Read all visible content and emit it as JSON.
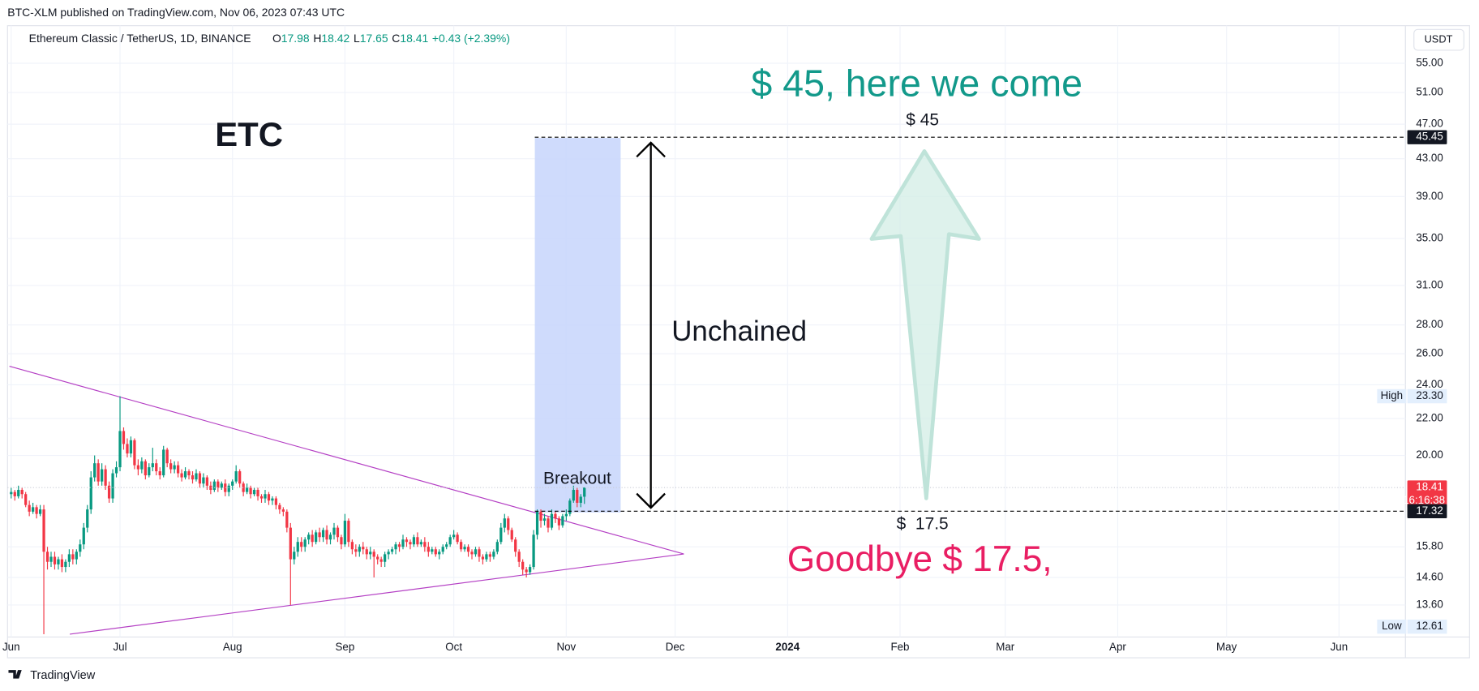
{
  "published": "BTC-XLM published on TradingView.com, Nov 06, 2023 07:43 UTC",
  "footer": "TradingView",
  "chart_data": {
    "type": "candlestick",
    "title": "Ethereum Classic / TetherUS, 1D, BINANCE",
    "quote": [
      {
        "key": "O",
        "value": "17.98"
      },
      {
        "key": "H",
        "value": "18.42"
      },
      {
        "key": "L",
        "value": "17.65"
      },
      {
        "key": "C",
        "value": "18.41"
      }
    ],
    "change": "+0.43 (+2.39%)",
    "currency": "USDT",
    "log_scale": true,
    "grid": true,
    "up_color": "#089981",
    "down_color": "#f23645",
    "open": [
      18.1,
      18.2,
      18.0,
      18.3,
      18.1,
      17.6,
      17.3,
      17.5,
      17.2,
      17.4,
      15.6,
      15.2,
      15.4,
      15.1,
      15.3,
      15.0,
      15.2,
      15.5,
      15.3,
      15.6,
      15.9,
      16.6,
      17.4,
      18.9,
      19.6,
      18.7,
      19.3,
      18.5,
      17.9,
      19.1,
      19.4,
      21.3,
      20.6,
      20.1,
      20.8,
      19.5,
      19.3,
      19.7,
      19.0,
      19.4,
      19.6,
      19.2,
      19.0,
      20.3,
      19.6,
      19.3,
      19.5,
      19.1,
      18.9,
      19.2,
      19.0,
      18.8,
      19.1,
      18.6,
      18.9,
      18.5,
      18.3,
      18.7,
      18.4,
      18.6,
      18.2,
      18.5,
      18.7,
      19.2,
      18.6,
      18.2,
      18.4,
      18.1,
      18.3,
      18.0,
      17.9,
      18.1,
      17.8,
      17.9,
      17.6,
      17.4,
      17.3,
      16.6,
      15.3,
      15.6,
      16.0,
      15.8,
      16.1,
      16.3,
      16.0,
      16.4,
      16.2,
      16.5,
      16.1,
      16.3,
      16.6,
      16.2,
      15.9,
      16.9,
      16.0,
      15.7,
      15.6,
      15.8,
      15.7,
      15.5,
      15.6,
      15.4,
      15.3,
      15.2,
      15.5,
      15.6,
      15.7,
      15.9,
      15.8,
      16.1,
      16.0,
      15.9,
      16.2,
      15.9,
      16.0,
      15.8,
      15.6,
      15.7,
      15.5,
      15.6,
      15.8,
      15.9,
      16.2,
      16.3,
      16.0,
      15.7,
      15.8,
      15.6,
      15.5,
      15.7,
      15.4,
      15.3,
      15.5,
      15.4,
      15.6,
      16.0,
      16.6,
      17.0,
      16.5,
      16.1,
      15.6,
      15.2,
      14.9,
      14.8,
      15.0,
      16.3,
      17.3,
      16.9,
      17.0,
      16.6,
      17.2,
      17.0,
      16.7,
      17.1,
      17.2,
      17.8,
      18.3,
      17.7,
      17.98
    ],
    "high": [
      18.4,
      18.3,
      18.5,
      18.4,
      18.2,
      17.8,
      17.7,
      17.6,
      17.6,
      17.6,
      15.8,
      15.6,
      15.6,
      15.4,
      15.5,
      15.3,
      15.7,
      15.7,
      15.7,
      16.1,
      16.8,
      17.6,
      19.2,
      20.0,
      19.8,
      19.6,
      19.5,
      18.7,
      19.3,
      19.7,
      23.3,
      21.5,
      20.9,
      21.0,
      20.9,
      19.8,
      19.9,
      19.8,
      19.6,
      20.4,
      19.8,
      19.4,
      20.5,
      20.4,
      19.8,
      19.7,
      19.7,
      19.3,
      19.4,
      19.3,
      19.2,
      19.3,
      19.2,
      19.1,
      19.0,
      18.7,
      18.8,
      18.8,
      18.7,
      18.8,
      18.6,
      18.8,
      19.5,
      19.3,
      18.7,
      18.6,
      18.5,
      18.4,
      18.4,
      18.1,
      18.3,
      18.2,
      18.0,
      18.0,
      17.7,
      17.5,
      17.4,
      16.8,
      15.8,
      16.2,
      16.2,
      16.2,
      16.4,
      16.5,
      16.5,
      16.6,
      16.6,
      16.7,
      16.4,
      16.8,
      16.7,
      16.3,
      17.2,
      17.0,
      16.1,
      15.9,
      15.9,
      16.0,
      15.8,
      15.8,
      15.7,
      15.5,
      15.4,
      15.6,
      15.7,
      15.8,
      16.0,
      16.0,
      16.3,
      16.2,
      16.1,
      16.3,
      16.4,
      16.1,
      16.2,
      16.0,
      15.8,
      15.8,
      15.7,
      15.9,
      16.0,
      16.3,
      16.5,
      16.4,
      16.1,
      15.9,
      15.9,
      15.7,
      15.8,
      15.8,
      15.5,
      15.6,
      15.6,
      15.7,
      16.1,
      16.8,
      17.2,
      17.1,
      16.6,
      16.2,
      15.7,
      15.3,
      15.0,
      15.1,
      16.5,
      17.4,
      17.4,
      17.2,
      17.1,
      17.4,
      17.3,
      17.1,
      17.2,
      17.4,
      17.9,
      18.5,
      18.4,
      18.1,
      18.42
    ],
    "low": [
      17.9,
      17.8,
      17.9,
      17.9,
      17.5,
      17.1,
      17.2,
      17.0,
      17.1,
      12.61,
      14.9,
      15.0,
      14.9,
      14.9,
      14.8,
      14.8,
      15.0,
      15.1,
      15.1,
      15.4,
      15.7,
      16.4,
      17.2,
      18.7,
      18.5,
      18.5,
      18.3,
      17.7,
      17.7,
      18.9,
      19.2,
      20.3,
      19.9,
      19.9,
      19.3,
      19.0,
      19.1,
      18.8,
      18.9,
      19.2,
      19.0,
      18.8,
      18.9,
      19.4,
      19.1,
      19.1,
      18.9,
      18.7,
      18.8,
      18.8,
      18.6,
      18.7,
      18.4,
      18.4,
      18.3,
      18.1,
      18.2,
      18.2,
      18.3,
      18.0,
      18.0,
      18.3,
      18.6,
      18.4,
      18.0,
      18.1,
      17.9,
      18.0,
      17.8,
      17.7,
      17.7,
      17.6,
      17.6,
      17.4,
      17.2,
      17.1,
      16.4,
      13.6,
      15.1,
      15.4,
      15.6,
      15.6,
      15.9,
      15.8,
      15.9,
      16.0,
      16.0,
      15.9,
      15.9,
      16.1,
      16.0,
      15.7,
      15.8,
      15.8,
      15.5,
      15.4,
      15.4,
      15.5,
      15.3,
      15.3,
      14.6,
      15.1,
      15.0,
      15.0,
      15.3,
      15.5,
      15.5,
      15.6,
      15.7,
      15.8,
      15.7,
      15.8,
      15.8,
      15.8,
      15.6,
      15.4,
      15.5,
      15.4,
      15.3,
      15.5,
      15.7,
      15.8,
      16.1,
      15.9,
      15.6,
      15.6,
      15.4,
      15.3,
      15.4,
      15.2,
      15.1,
      15.2,
      15.2,
      15.3,
      15.5,
      15.9,
      16.4,
      16.3,
      16.0,
      15.4,
      15.0,
      14.7,
      14.6,
      14.7,
      14.9,
      16.1,
      16.6,
      16.7,
      16.4,
      16.5,
      16.8,
      16.5,
      16.6,
      16.9,
      17.1,
      17.7,
      17.5,
      17.5,
      17.65
    ],
    "close": [
      18.2,
      18.0,
      18.3,
      18.1,
      17.6,
      17.3,
      17.5,
      17.2,
      17.4,
      15.6,
      15.2,
      15.4,
      15.1,
      15.3,
      15.0,
      15.2,
      15.5,
      15.3,
      15.6,
      15.9,
      16.6,
      17.4,
      18.9,
      19.6,
      18.7,
      19.3,
      18.5,
      17.9,
      19.1,
      19.4,
      21.3,
      20.6,
      20.1,
      20.8,
      19.5,
      19.3,
      19.7,
      19.0,
      19.4,
      19.6,
      19.2,
      19.0,
      20.3,
      19.6,
      19.3,
      19.5,
      19.1,
      18.9,
      19.2,
      19.0,
      18.8,
      19.1,
      18.6,
      18.9,
      18.5,
      18.3,
      18.7,
      18.4,
      18.6,
      18.2,
      18.5,
      18.7,
      19.2,
      18.6,
      18.2,
      18.4,
      18.1,
      18.3,
      18.0,
      17.9,
      18.1,
      17.8,
      17.9,
      17.6,
      17.4,
      17.3,
      16.6,
      15.3,
      15.6,
      16.0,
      15.8,
      16.1,
      16.3,
      16.0,
      16.4,
      16.2,
      16.5,
      16.1,
      16.3,
      16.6,
      16.2,
      15.9,
      16.9,
      16.0,
      15.7,
      15.6,
      15.8,
      15.7,
      15.5,
      15.6,
      15.4,
      15.3,
      15.2,
      15.5,
      15.6,
      15.7,
      15.9,
      15.8,
      16.1,
      16.0,
      15.9,
      16.2,
      15.9,
      16.0,
      15.8,
      15.6,
      15.7,
      15.5,
      15.6,
      15.8,
      15.9,
      16.2,
      16.3,
      16.0,
      15.7,
      15.8,
      15.6,
      15.5,
      15.7,
      15.4,
      15.3,
      15.5,
      15.4,
      15.6,
      16.0,
      16.6,
      17.0,
      16.5,
      16.1,
      15.6,
      15.2,
      14.9,
      14.8,
      15.0,
      16.3,
      17.3,
      16.9,
      17.0,
      16.6,
      17.2,
      17.0,
      16.7,
      17.1,
      17.2,
      17.8,
      18.3,
      17.7,
      17.98,
      18.41
    ],
    "xlim": [
      -1,
      384.3
    ],
    "xticks": [
      {
        "value": 0,
        "label": "Jun"
      },
      {
        "value": 30,
        "label": "Jul"
      },
      {
        "value": 61,
        "label": "Aug"
      },
      {
        "value": 92,
        "label": "Sep"
      },
      {
        "value": 122,
        "label": "Oct"
      },
      {
        "value": 153,
        "label": "Nov"
      },
      {
        "value": 183,
        "label": "Dec"
      },
      {
        "value": 214,
        "label": "2024"
      },
      {
        "value": 245,
        "label": "Feb"
      },
      {
        "value": 274,
        "label": "Mar"
      },
      {
        "value": 305,
        "label": "Apr"
      },
      {
        "value": 335,
        "label": "May"
      },
      {
        "value": 366,
        "label": "Jun"
      }
    ],
    "ylim": [
      12.52,
      60.6
    ],
    "yticks": [
      {
        "value": 13.6,
        "label": "13.60"
      },
      {
        "value": 14.6,
        "label": "14.60"
      },
      {
        "value": 15.8,
        "label": "15.80"
      },
      {
        "value": 20,
        "label": "20.00"
      },
      {
        "value": 22,
        "label": "22.00"
      },
      {
        "value": 24,
        "label": "24.00"
      },
      {
        "value": 26,
        "label": "26.00"
      },
      {
        "value": 28,
        "label": "28.00"
      },
      {
        "value": 31,
        "label": "31.00"
      },
      {
        "value": 35,
        "label": "35.00"
      },
      {
        "value": 39,
        "label": "39.00"
      },
      {
        "value": 43,
        "label": "43.00"
      },
      {
        "value": 47,
        "label": "47.00"
      },
      {
        "value": 51,
        "label": "51.00"
      },
      {
        "value": 55,
        "label": "55.00"
      }
    ],
    "price_labels": [
      {
        "value": 45.45,
        "label": "45.45",
        "color": "#131722"
      },
      {
        "value": 18.41,
        "label": "18.41",
        "countdown": "16:16:38",
        "color": "#f23645"
      },
      {
        "value": 17.32,
        "label": "17.32",
        "color": "#131722"
      }
    ],
    "extremes": [
      {
        "tag": "High",
        "value": 23.3,
        "label": "23.30"
      },
      {
        "tag": "Low",
        "value": 12.61,
        "label": "12.61"
      }
    ],
    "annotations": {
      "ticker": "ETC",
      "target": "$ 45, here we come",
      "target_level": "$ 45",
      "move": "Unchained",
      "breakout": "Breakout",
      "base_level": "$  17.5",
      "farewell": "Goodbye $ 17.5,"
    }
  }
}
